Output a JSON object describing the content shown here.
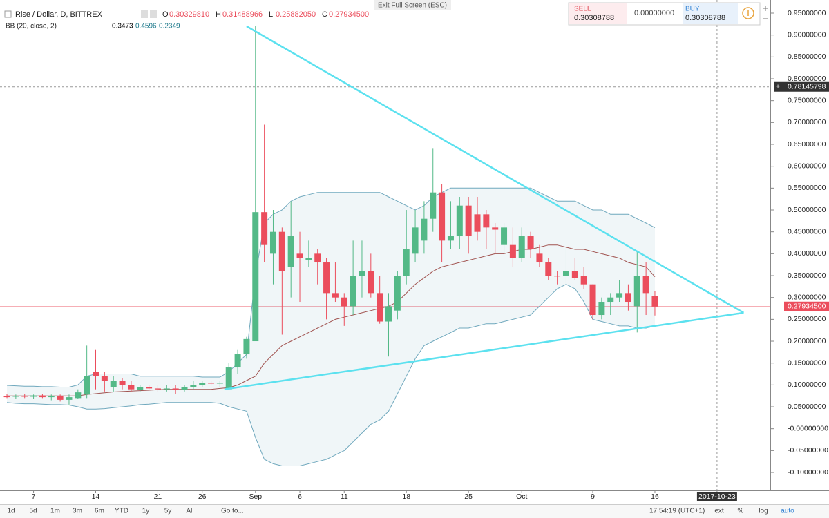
{
  "chart_data": {
    "type": "candlestick",
    "title": "Rise / Dollar, D, BITTREX",
    "ohlc_keys": [
      "O",
      "H",
      "L",
      "C"
    ],
    "ohlc_labels": [
      "0.30329810",
      "0.31488966",
      "0.25882050",
      "0.27934500"
    ],
    "x": [
      2,
      3,
      4,
      5,
      6,
      7,
      8,
      9,
      10,
      11,
      12,
      13,
      14,
      15,
      16,
      17,
      18,
      19,
      20,
      21,
      22,
      23,
      24,
      25,
      26,
      27,
      28,
      29,
      30,
      31,
      32,
      33,
      34,
      35,
      36,
      37,
      38,
      39,
      40,
      41,
      42,
      43,
      44,
      45,
      46,
      47,
      48,
      49,
      50,
      51,
      52,
      53,
      54,
      55,
      56,
      57,
      58,
      59,
      60,
      61,
      62,
      63,
      64,
      65,
      66,
      67,
      68,
      69,
      70,
      71,
      72,
      73,
      74,
      75
    ],
    "open": [
      0.075,
      0.073,
      0.075,
      0.073,
      0.076,
      0.072,
      0.074,
      0.066,
      0.07,
      0.078,
      0.13,
      0.12,
      0.095,
      0.11,
      0.1,
      0.088,
      0.095,
      0.092,
      0.09,
      0.092,
      0.088,
      0.095,
      0.1,
      0.105,
      0.103,
      0.09,
      0.14,
      0.17,
      0.2,
      0.495,
      0.4,
      0.45,
      0.37,
      0.4,
      0.385,
      0.4,
      0.38,
      0.31,
      0.3,
      0.28,
      0.35,
      0.36,
      0.31,
      0.245,
      0.27,
      0.35,
      0.4,
      0.43,
      0.48,
      0.54,
      0.43,
      0.44,
      0.51,
      0.49,
      0.49,
      0.46,
      0.42,
      0.42,
      0.39,
      0.44,
      0.4,
      0.38,
      0.35,
      0.35,
      0.36,
      0.35,
      0.33,
      0.26,
      0.29,
      0.3,
      0.31,
      0.28,
      0.35,
      0.3032981
    ],
    "high": [
      0.08,
      0.078,
      0.08,
      0.078,
      0.08,
      0.078,
      0.078,
      0.078,
      0.09,
      0.19,
      0.18,
      0.13,
      0.12,
      0.115,
      0.11,
      0.1,
      0.1,
      0.1,
      0.1,
      0.1,
      0.1,
      0.11,
      0.11,
      0.11,
      0.11,
      0.15,
      0.18,
      0.21,
      0.92,
      0.695,
      0.5,
      0.46,
      0.52,
      0.45,
      0.43,
      0.41,
      0.39,
      0.38,
      0.31,
      0.43,
      0.43,
      0.4,
      0.35,
      0.31,
      0.36,
      0.5,
      0.5,
      0.52,
      0.64,
      0.56,
      0.52,
      0.53,
      0.53,
      0.53,
      0.5,
      0.47,
      0.47,
      0.46,
      0.46,
      0.45,
      0.42,
      0.39,
      0.36,
      0.41,
      0.39,
      0.37,
      0.33,
      0.3,
      0.31,
      0.34,
      0.33,
      0.405,
      0.38,
      0.31488966
    ],
    "low": [
      0.07,
      0.068,
      0.07,
      0.068,
      0.07,
      0.065,
      0.062,
      0.055,
      0.068,
      0.07,
      0.09,
      0.085,
      0.085,
      0.09,
      0.085,
      0.085,
      0.09,
      0.085,
      0.085,
      0.08,
      0.085,
      0.09,
      0.095,
      0.1,
      0.095,
      0.088,
      0.125,
      0.16,
      0.2,
      0.38,
      0.33,
      0.215,
      0.3,
      0.29,
      0.37,
      0.33,
      0.25,
      0.29,
      0.235,
      0.26,
      0.3,
      0.3,
      0.24,
      0.165,
      0.25,
      0.33,
      0.38,
      0.4,
      0.45,
      0.38,
      0.41,
      0.41,
      0.4,
      0.43,
      0.41,
      0.4,
      0.4,
      0.37,
      0.38,
      0.39,
      0.37,
      0.34,
      0.33,
      0.33,
      0.34,
      0.32,
      0.25,
      0.25,
      0.26,
      0.29,
      0.27,
      0.22,
      0.26,
      0.2588205
    ],
    "close": [
      0.072,
      0.075,
      0.073,
      0.076,
      0.072,
      0.075,
      0.066,
      0.072,
      0.083,
      0.12,
      0.12,
      0.11,
      0.11,
      0.1,
      0.09,
      0.095,
      0.092,
      0.09,
      0.092,
      0.088,
      0.095,
      0.1,
      0.105,
      0.103,
      0.105,
      0.14,
      0.17,
      0.205,
      0.495,
      0.42,
      0.45,
      0.36,
      0.44,
      0.39,
      0.39,
      0.38,
      0.31,
      0.3,
      0.28,
      0.35,
      0.36,
      0.31,
      0.245,
      0.28,
      0.35,
      0.41,
      0.46,
      0.48,
      0.54,
      0.43,
      0.44,
      0.51,
      0.44,
      0.45,
      0.46,
      0.455,
      0.46,
      0.39,
      0.44,
      0.41,
      0.38,
      0.35,
      0.348,
      0.36,
      0.345,
      0.33,
      0.26,
      0.29,
      0.3,
      0.31,
      0.29,
      0.35,
      0.31,
      0.279345
    ],
    "up_color": "#53b987",
    "down_color": "#eb4d5c",
    "indicator": {
      "label": "BB (20, close, 2)",
      "basis": [
        0.075,
        0.075,
        0.075,
        0.075,
        0.075,
        0.075,
        0.075,
        0.075,
        0.075,
        0.078,
        0.08,
        0.082,
        0.084,
        0.085,
        0.086,
        0.087,
        0.088,
        0.089,
        0.09,
        0.09,
        0.09,
        0.09,
        0.09,
        0.09,
        0.092,
        0.094,
        0.1,
        0.11,
        0.12,
        0.15,
        0.17,
        0.19,
        0.2,
        0.21,
        0.22,
        0.23,
        0.24,
        0.25,
        0.255,
        0.26,
        0.265,
        0.27,
        0.275,
        0.28,
        0.29,
        0.31,
        0.33,
        0.345,
        0.36,
        0.37,
        0.375,
        0.38,
        0.385,
        0.39,
        0.395,
        0.4,
        0.4,
        0.405,
        0.41,
        0.41,
        0.415,
        0.42,
        0.42,
        0.415,
        0.41,
        0.41,
        0.405,
        0.4,
        0.395,
        0.39,
        0.38,
        0.375,
        0.37,
        0.3473
      ],
      "upper": [
        0.099,
        0.098,
        0.097,
        0.097,
        0.096,
        0.096,
        0.095,
        0.095,
        0.1,
        0.12,
        0.125,
        0.125,
        0.125,
        0.125,
        0.125,
        0.12,
        0.12,
        0.12,
        0.12,
        0.12,
        0.12,
        0.12,
        0.118,
        0.118,
        0.118,
        0.13,
        0.15,
        0.17,
        0.35,
        0.47,
        0.49,
        0.5,
        0.52,
        0.53,
        0.535,
        0.54,
        0.54,
        0.54,
        0.54,
        0.54,
        0.54,
        0.54,
        0.54,
        0.53,
        0.52,
        0.51,
        0.5,
        0.51,
        0.53,
        0.54,
        0.55,
        0.55,
        0.55,
        0.55,
        0.55,
        0.55,
        0.55,
        0.55,
        0.55,
        0.55,
        0.54,
        0.53,
        0.52,
        0.52,
        0.52,
        0.51,
        0.5,
        0.5,
        0.49,
        0.49,
        0.49,
        0.48,
        0.47,
        0.4596
      ],
      "lower": [
        0.06,
        0.058,
        0.057,
        0.057,
        0.056,
        0.055,
        0.055,
        0.054,
        0.05,
        0.045,
        0.045,
        0.046,
        0.048,
        0.05,
        0.052,
        0.055,
        0.056,
        0.058,
        0.06,
        0.06,
        0.06,
        0.06,
        0.06,
        0.06,
        0.058,
        0.05,
        0.045,
        0.04,
        -0.02,
        -0.07,
        -0.08,
        -0.085,
        -0.085,
        -0.085,
        -0.08,
        -0.075,
        -0.07,
        -0.06,
        -0.05,
        -0.03,
        -0.01,
        0.01,
        0.02,
        0.04,
        0.08,
        0.12,
        0.16,
        0.19,
        0.2,
        0.21,
        0.22,
        0.23,
        0.23,
        0.235,
        0.24,
        0.24,
        0.245,
        0.25,
        0.255,
        0.26,
        0.28,
        0.3,
        0.32,
        0.33,
        0.32,
        0.29,
        0.25,
        0.245,
        0.24,
        0.235,
        0.235,
        0.23,
        0.23,
        0.2349
      ],
      "basis_color": "#a0524f",
      "band_color": "#6fa8bd",
      "basis_label_color": "#000000",
      "upper_label_color": "#1f7a8c",
      "lower_label_color": "#1f7a8c"
    },
    "trendlines": [
      {
        "color": "#5ce1ef",
        "x": [
          29,
          85
        ],
        "y": [
          0.92,
          0.265
        ]
      },
      {
        "color": "#5ce1ef",
        "x": [
          26.5,
          85
        ],
        "y": [
          0.09,
          0.265
        ]
      }
    ],
    "crosshair": {
      "x": 82,
      "y": 0.78145798
    },
    "last_price": {
      "value": 0.279345,
      "label": "0.27934500"
    },
    "xlim": [
      1.22,
      88
    ],
    "ylim": [
      -0.141,
      0.98
    ],
    "xticks": [
      {
        "value": 5,
        "label": "7"
      },
      {
        "value": 12,
        "label": "14"
      },
      {
        "value": 19,
        "label": "21"
      },
      {
        "value": 24,
        "label": "26"
      },
      {
        "value": 30,
        "label": "Sep"
      },
      {
        "value": 35,
        "label": "6"
      },
      {
        "value": 40,
        "label": "11"
      },
      {
        "value": 47,
        "label": "18"
      },
      {
        "value": 54,
        "label": "25"
      },
      {
        "value": 60,
        "label": "Oct"
      },
      {
        "value": 68,
        "label": "9"
      },
      {
        "value": 75,
        "label": "16"
      },
      {
        "value": 82,
        "label": "2017-10-23"
      }
    ],
    "yticks": [
      {
        "value": 0.95,
        "label": "0.95000000"
      },
      {
        "value": 0.9,
        "label": "0.90000000"
      },
      {
        "value": 0.85,
        "label": "0.85000000"
      },
      {
        "value": 0.8,
        "label": "0.80000000"
      },
      {
        "value": 0.75,
        "label": "0.75000000"
      },
      {
        "value": 0.7,
        "label": "0.70000000"
      },
      {
        "value": 0.65,
        "label": "0.65000000"
      },
      {
        "value": 0.6,
        "label": "0.60000000"
      },
      {
        "value": 0.55,
        "label": "0.55000000"
      },
      {
        "value": 0.5,
        "label": "0.50000000"
      },
      {
        "value": 0.45,
        "label": "0.45000000"
      },
      {
        "value": 0.4,
        "label": "0.40000000"
      },
      {
        "value": 0.35,
        "label": "0.35000000"
      },
      {
        "value": 0.3,
        "label": "0.30000000"
      },
      {
        "value": 0.25,
        "label": "0.25000000"
      },
      {
        "value": 0.2,
        "label": "0.20000000"
      },
      {
        "value": 0.15,
        "label": "0.15000000"
      },
      {
        "value": 0.1,
        "label": "0.10000000"
      },
      {
        "value": 0.05,
        "label": "0.05000000"
      },
      {
        "value": 0,
        "label": "-0.00000000"
      },
      {
        "value": -0.05,
        "label": "-0.05000000"
      },
      {
        "value": -0.1,
        "label": "-0.10000000"
      }
    ]
  },
  "ui": {
    "exit_fullscreen": "Exit Full Screen (ESC)",
    "trade": {
      "sell_label": "SELL",
      "sell_price": "0.30308788",
      "spread": "0.00000000",
      "buy_label": "BUY",
      "buy_price": "0.30308788"
    },
    "ranges": [
      "1d",
      "5d",
      "1m",
      "3m",
      "6m",
      "YTD",
      "1y",
      "5y",
      "All"
    ],
    "goto": "Go to...",
    "time": "17:54:19 (UTC+1)",
    "options": [
      "ext",
      "%",
      "log",
      "auto"
    ]
  }
}
